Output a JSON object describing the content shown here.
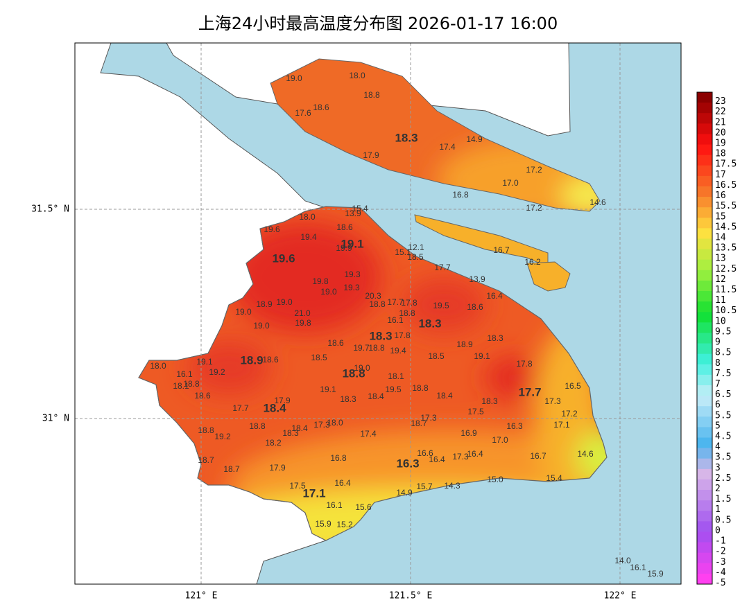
{
  "title": "上海24小时最高温度分布图 2026-01-17 16:00",
  "x_axis_labels": [
    "121° E",
    "121.5° E",
    "122° E"
  ],
  "y_axis_labels": [
    "31.5° N",
    "31° N"
  ],
  "colorbar_labels": [
    "23",
    "22",
    "21",
    "20",
    "19",
    "18",
    "17.5",
    "17",
    "16.5",
    "16",
    "15.5",
    "15",
    "14.5",
    "14",
    "13.5",
    "13",
    "12.5",
    "12",
    "11.5",
    "11",
    "10.5",
    "10",
    "9.5",
    "9",
    "8.5",
    "8",
    "7.5",
    "7",
    "6.5",
    "6",
    "5.5",
    "5",
    "4.5",
    "4",
    "3.5",
    "3",
    "2.5",
    "2",
    "1.5",
    "1",
    "0.5",
    "0",
    "-1",
    "-2",
    "-3",
    "-4",
    "-5"
  ],
  "major_stations": [
    "19.6",
    "19.1",
    "18.3",
    "18.3",
    "18.3",
    "18.9",
    "18.8",
    "18.4",
    "17.7",
    "16.3",
    "17.1"
  ],
  "stations": [
    "19.0",
    "18.0",
    "18.8",
    "18.6",
    "17.6",
    "17.4",
    "14.9",
    "17.9",
    "17.2",
    "17.0",
    "16.8",
    "17.2",
    "14.6",
    "15.4",
    "13.9",
    "18.0",
    "18.6",
    "19.6",
    "19.4",
    "19.9",
    "15.1",
    "12.1",
    "18.5",
    "16.7",
    "16.2",
    "17.7",
    "19.3",
    "19.8",
    "19.3",
    "13.9",
    "19.0",
    "20.3",
    "16.4",
    "18.8",
    "17.7",
    "17.8",
    "18.9",
    "19.0",
    "19.5",
    "18.6",
    "19.0",
    "21.0",
    "18.8",
    "19.8",
    "16.1",
    "19.0",
    "17.8",
    "18.3",
    "18.6",
    "19.7",
    "18.8",
    "19.4",
    "18.9",
    "18.5",
    "18.6",
    "18.5",
    "19.1",
    "19.1",
    "18.0",
    "19.2",
    "19.0",
    "17.8",
    "16.1",
    "18.1",
    "18.8",
    "18.1",
    "16.5",
    "19.1",
    "19.5",
    "18.8",
    "18.6",
    "18.3",
    "18.4",
    "18.4",
    "17.9",
    "18.3",
    "17.3",
    "17.7",
    "17.5",
    "17.2",
    "17.3",
    "18.0",
    "17.3",
    "18.7",
    "16.3",
    "17.1",
    "18.8",
    "18.4",
    "18.3",
    "18.8",
    "19.2",
    "17.4",
    "16.9",
    "17.0",
    "18.2",
    "16.6",
    "16.4",
    "17.3",
    "16.4",
    "14.6",
    "16.7",
    "16.8",
    "18.7",
    "17.9",
    "18.7",
    "15.4",
    "15.0",
    "17.5",
    "16.4",
    "15.7",
    "14.3",
    "14.9",
    "16.1",
    "15.6",
    "15.9",
    "15.2",
    "14.0",
    "16.1",
    "15.9"
  ]
}
